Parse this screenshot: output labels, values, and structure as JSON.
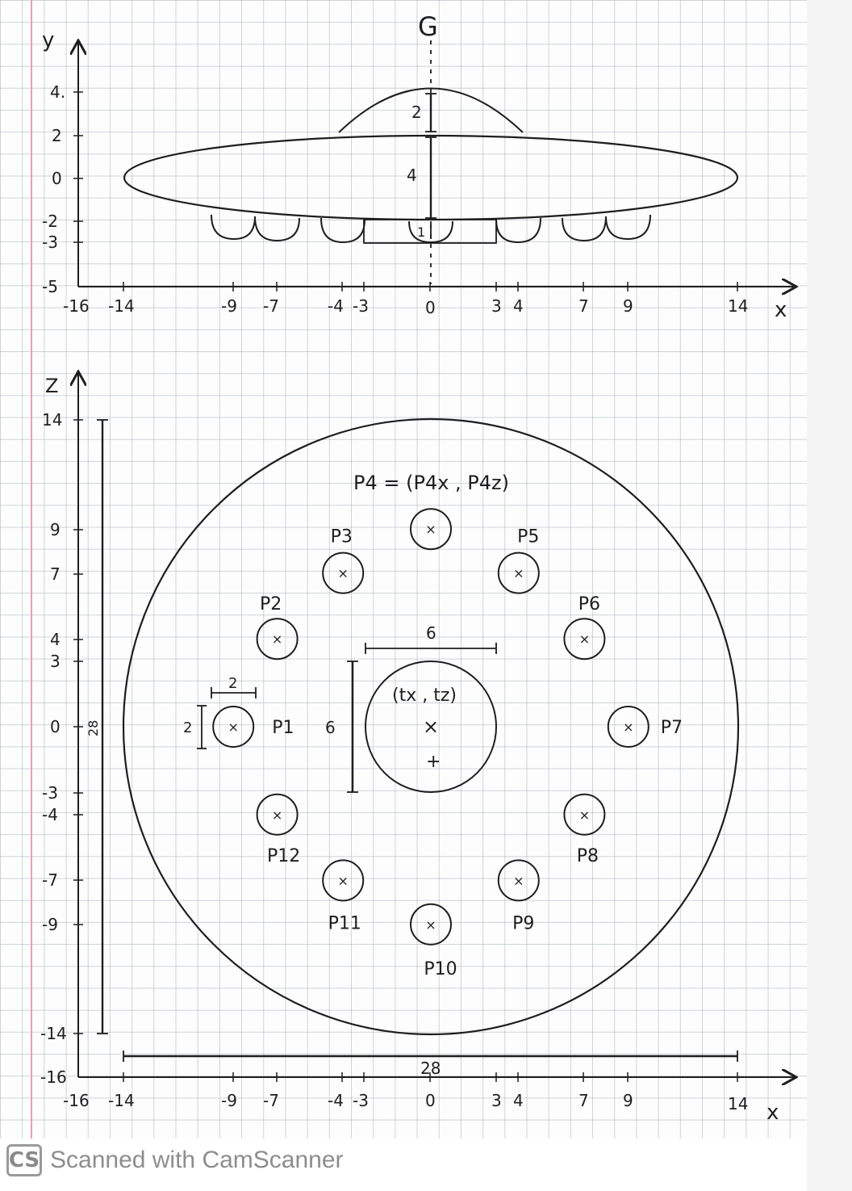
{
  "side_view": {
    "y_axis_label": "y",
    "x_axis_label": "x",
    "y_ticks": [
      "4.",
      "2",
      "0",
      "-2",
      "-3",
      "-5"
    ],
    "x_ticks": [
      "-16",
      "-14",
      "-9",
      "-7",
      "-4",
      "-3",
      "0",
      "3",
      "4",
      "7",
      "9",
      "14"
    ],
    "symmetry_axis_label": "G",
    "dim_dome_height": "2",
    "dim_body_height": "4",
    "dim_foot_height": "1"
  },
  "top_view": {
    "z_axis_label": "Z",
    "x_axis_label": "x",
    "z_ticks": [
      "14",
      "9",
      "7",
      "4",
      "3",
      "0",
      "-3",
      "-4",
      "-7",
      "-9",
      "-14",
      "-16"
    ],
    "x_ticks": [
      "-16",
      "-14",
      "-9",
      "-7",
      "-4",
      "-3",
      "0",
      "3",
      "4",
      "7",
      "9",
      "14"
    ],
    "p4_formula": "P4 = (P4x , P4z)",
    "center_label": "(tx , tz)",
    "dim_center_width": "6",
    "dim_center_height": "6",
    "dim_pod_width": "2",
    "dim_pod_height": "2",
    "dim_total_height": "28",
    "dim_total_width": "28",
    "pods": [
      {
        "label": "P1",
        "x": -9,
        "z": 0
      },
      {
        "label": "P2",
        "x": -7,
        "z": 4
      },
      {
        "label": "P3",
        "x": -4,
        "z": 7
      },
      {
        "label": "P4",
        "x": 0,
        "z": 9
      },
      {
        "label": "P5",
        "x": 4,
        "z": 7
      },
      {
        "label": "P6",
        "x": 7,
        "z": 4
      },
      {
        "label": "P7",
        "x": 9,
        "z": 0
      },
      {
        "label": "P8",
        "x": 7,
        "z": -4
      },
      {
        "label": "P9",
        "x": 4,
        "z": -7
      },
      {
        "label": "P10",
        "x": 0,
        "z": -9
      },
      {
        "label": "P11",
        "x": -4,
        "z": -7
      },
      {
        "label": "P12",
        "x": -7,
        "z": -4
      }
    ]
  },
  "watermark": {
    "logo": "CS",
    "text": "Scanned with CamScanner"
  }
}
